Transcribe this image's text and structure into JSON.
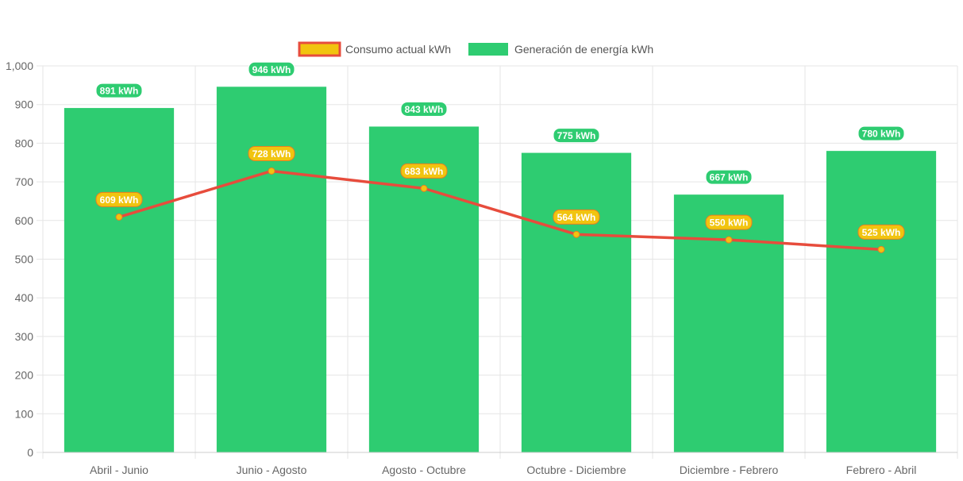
{
  "chart_data": {
    "type": "bar",
    "title": "",
    "xlabel": "",
    "ylabel": "",
    "categories": [
      "Abril - Junio",
      "Junio - Agosto",
      "Agosto - Octubre",
      "Octubre - Diciembre",
      "Diciembre - Febrero",
      "Febrero - Abril"
    ],
    "ylim": [
      0,
      1000
    ],
    "yticks": [
      0,
      100,
      200,
      300,
      400,
      500,
      600,
      700,
      800,
      900,
      1000
    ],
    "ytick_labels": [
      "0",
      "100",
      "200",
      "300",
      "400",
      "500",
      "600",
      "700",
      "800",
      "900",
      "1,000"
    ],
    "grid": true,
    "legend_position": "top",
    "series": [
      {
        "name": "Consumo actual kWh",
        "type": "line",
        "values": [
          609,
          728,
          683,
          564,
          550,
          525
        ],
        "data_labels": [
          "609 kWh",
          "728 kWh",
          "683 kWh",
          "564 kWh",
          "550 kWh",
          "525 kWh"
        ],
        "color": "#e74c3c",
        "fill_color": "#f1c40f"
      },
      {
        "name": "Generación de energía kWh",
        "type": "bar",
        "values": [
          891,
          946,
          843,
          775,
          667,
          780
        ],
        "data_labels": [
          "891 kWh",
          "946 kWh",
          "843 kWh",
          "775 kWh",
          "667 kWh",
          "780 kWh"
        ],
        "color": "#2ecc71"
      }
    ]
  }
}
